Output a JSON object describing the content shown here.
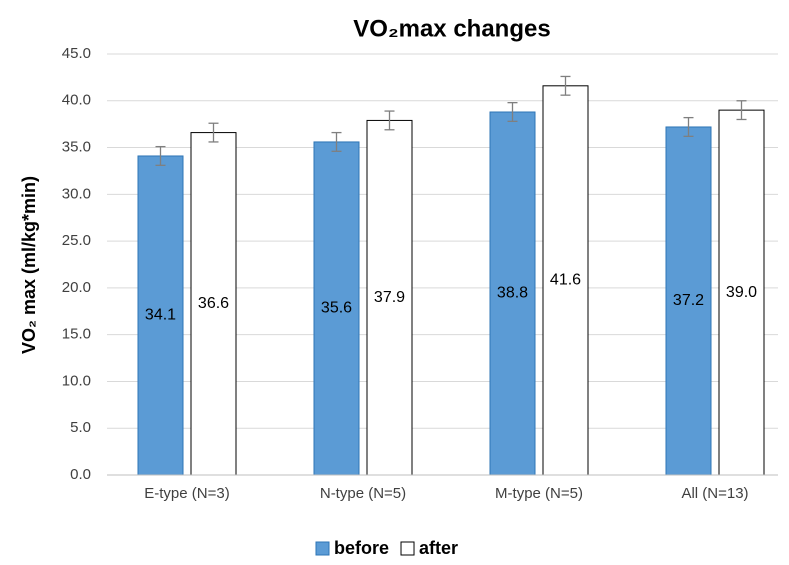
{
  "chart_data": {
    "type": "bar",
    "title": "VO₂max changes",
    "y_label": "VO₂ max (ml/kg*min)",
    "categories": [
      "E-type (N=3)",
      "N-type (N=5)",
      "M-type (N=5)",
      "All (N=13)"
    ],
    "series": [
      {
        "name": "before",
        "color": "#5b9bd5",
        "edge": "#2e75b6",
        "values": [
          34.1,
          35.6,
          38.8,
          37.2
        ],
        "value_labels": [
          "34.1",
          "35.6",
          "38.8",
          "37.2"
        ],
        "errors": [
          1.0,
          1.0,
          1.0,
          1.0
        ]
      },
      {
        "name": "after",
        "color": "#ffffff",
        "edge": "#000000",
        "values": [
          36.6,
          37.9,
          41.6,
          39.0
        ],
        "value_labels": [
          "36.6",
          "37.9",
          "41.6",
          "39.0"
        ],
        "errors": [
          1.0,
          1.0,
          1.0,
          1.0
        ]
      }
    ],
    "ylim": [
      0,
      45
    ],
    "yticks": [
      {
        "value": 0,
        "label": "0.0"
      },
      {
        "value": 5,
        "label": "5.0"
      },
      {
        "value": 10,
        "label": "10.0"
      },
      {
        "value": 15,
        "label": "15.0"
      },
      {
        "value": 20,
        "label": "20.0"
      },
      {
        "value": 25,
        "label": "25.0"
      },
      {
        "value": 30,
        "label": "30.0"
      },
      {
        "value": 35,
        "label": "35.0"
      },
      {
        "value": 40,
        "label": "40.0"
      },
      {
        "value": 45,
        "label": "45.0"
      }
    ],
    "grid": true,
    "legend": "bottom"
  }
}
